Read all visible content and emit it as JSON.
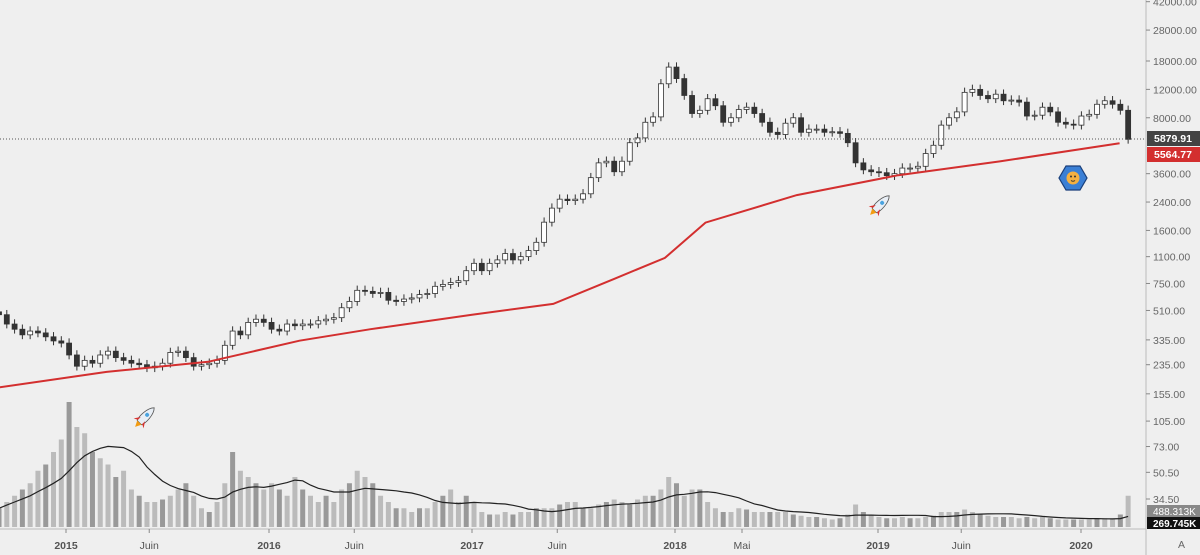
{
  "chart_data": {
    "type": "candlestick",
    "title": "",
    "scale": "log",
    "start_year": 2014.67,
    "period_years": 0.03836,
    "y_ticks": [
      "42000.00",
      "28000.00",
      "18000.00",
      "12000.00",
      "8000.00",
      "3600.00",
      "2400.00",
      "1600.00",
      "1100.00",
      "750.00",
      "510.00",
      "335.00",
      "235.00",
      "155.00",
      "105.00",
      "73.00",
      "50.50",
      "34.50"
    ],
    "y_tick_values": [
      42000,
      28000,
      18000,
      12000,
      8000,
      3600,
      2400,
      1600,
      1100,
      750,
      510,
      335,
      235,
      155,
      105,
      73,
      50.5,
      34.5
    ],
    "x_ticks": [
      {
        "label": "2015",
        "t": 2015.0,
        "major": true
      },
      {
        "label": "Juin",
        "t": 2015.41,
        "major": false
      },
      {
        "label": "2016",
        "t": 2016.0,
        "major": true
      },
      {
        "label": "Juin",
        "t": 2016.42,
        "major": false
      },
      {
        "label": "2017",
        "t": 2017.0,
        "major": true
      },
      {
        "label": "Juin",
        "t": 2017.42,
        "major": false
      },
      {
        "label": "2018",
        "t": 2018.0,
        "major": true
      },
      {
        "label": "Mai",
        "t": 2018.33,
        "major": false
      },
      {
        "label": "2019",
        "t": 2019.0,
        "major": true
      },
      {
        "label": "Juin",
        "t": 2019.41,
        "major": false
      },
      {
        "label": "2020",
        "t": 2020.0,
        "major": true
      }
    ],
    "closes": [
      480,
      420,
      390,
      360,
      380,
      370,
      350,
      330,
      320,
      270,
      230,
      250,
      240,
      270,
      285,
      260,
      250,
      240,
      235,
      225,
      230,
      240,
      280,
      285,
      260,
      230,
      235,
      240,
      250,
      310,
      380,
      360,
      430,
      450,
      430,
      390,
      380,
      420,
      410,
      420,
      420,
      440,
      450,
      460,
      530,
      580,
      680,
      670,
      650,
      660,
      590,
      580,
      600,
      610,
      640,
      650,
      720,
      740,
      760,
      780,
      900,
      1000,
      900,
      1000,
      1050,
      1150,
      1050,
      1100,
      1200,
      1350,
      1800,
      2200,
      2500,
      2450,
      2500,
      2700,
      3400,
      4200,
      4300,
      3700,
      4300,
      5600,
      6000,
      7500,
      8100,
      13000,
      16500,
      14000,
      11000,
      8500,
      8900,
      10500,
      9500,
      7500,
      8000,
      9000,
      9300,
      8500,
      7500,
      6500,
      6300,
      7400,
      8000,
      6500,
      6800,
      6800,
      6500,
      6550,
      6400,
      5600,
      4200,
      3800,
      3700,
      3650,
      3500,
      3600,
      3900,
      3900,
      4000,
      4800,
      5400,
      7200,
      8000,
      8700,
      11500,
      12000,
      11000,
      10500,
      11200,
      10200,
      10300,
      10000,
      8200,
      8300,
      9300,
      8700,
      7500,
      7300,
      7200,
      8200,
      8400,
      9700,
      10200,
      9700,
      8900,
      5879.91
    ],
    "volume": [
      15,
      20,
      25,
      30,
      35,
      45,
      50,
      60,
      70,
      100,
      80,
      75,
      60,
      55,
      50,
      40,
      45,
      30,
      25,
      20,
      20,
      22,
      25,
      30,
      35,
      25,
      15,
      12,
      20,
      35,
      60,
      45,
      40,
      35,
      30,
      35,
      30,
      25,
      40,
      30,
      25,
      20,
      25,
      20,
      30,
      35,
      45,
      40,
      35,
      25,
      20,
      15,
      15,
      12,
      15,
      15,
      20,
      25,
      30,
      20,
      25,
      20,
      12,
      10,
      10,
      12,
      10,
      12,
      12,
      15,
      15,
      15,
      18,
      20,
      20,
      15,
      15,
      18,
      20,
      22,
      20,
      18,
      22,
      25,
      25,
      30,
      40,
      35,
      25,
      30,
      30,
      20,
      15,
      12,
      12,
      15,
      14,
      12,
      12,
      12,
      12,
      12,
      10,
      9,
      8,
      8,
      7,
      6,
      7,
      10,
      18,
      12,
      10,
      8,
      7,
      7,
      8,
      7,
      7,
      8,
      9,
      12,
      12,
      12,
      14,
      12,
      10,
      9,
      8,
      8,
      8,
      7,
      8,
      7,
      8,
      7,
      6,
      6,
      6,
      6,
      6,
      7,
      7,
      6,
      10,
      25
    ],
    "ma200": [
      [
        2014.67,
        170
      ],
      [
        2015.2,
        212
      ],
      [
        2015.7,
        245
      ],
      [
        2016.15,
        331
      ],
      [
        2016.5,
        390
      ],
      [
        2017.0,
        480
      ],
      [
        2017.4,
        560
      ],
      [
        2017.7,
        800
      ],
      [
        2017.95,
        1080
      ],
      [
        2018.15,
        1790
      ],
      [
        2018.6,
        2650
      ],
      [
        2019.1,
        3520
      ],
      [
        2019.6,
        4290
      ],
      [
        2020.19,
        5564.77
      ]
    ],
    "last_price_label": "5879.91",
    "ma_label": "5564.77",
    "volume_label": "488.313K",
    "volume_ma_label": "269.745K",
    "scale_button": "A",
    "colors": {
      "ma": "#d32f2f",
      "up": "#ffffff",
      "down": "#333333",
      "last": "#444444"
    }
  }
}
